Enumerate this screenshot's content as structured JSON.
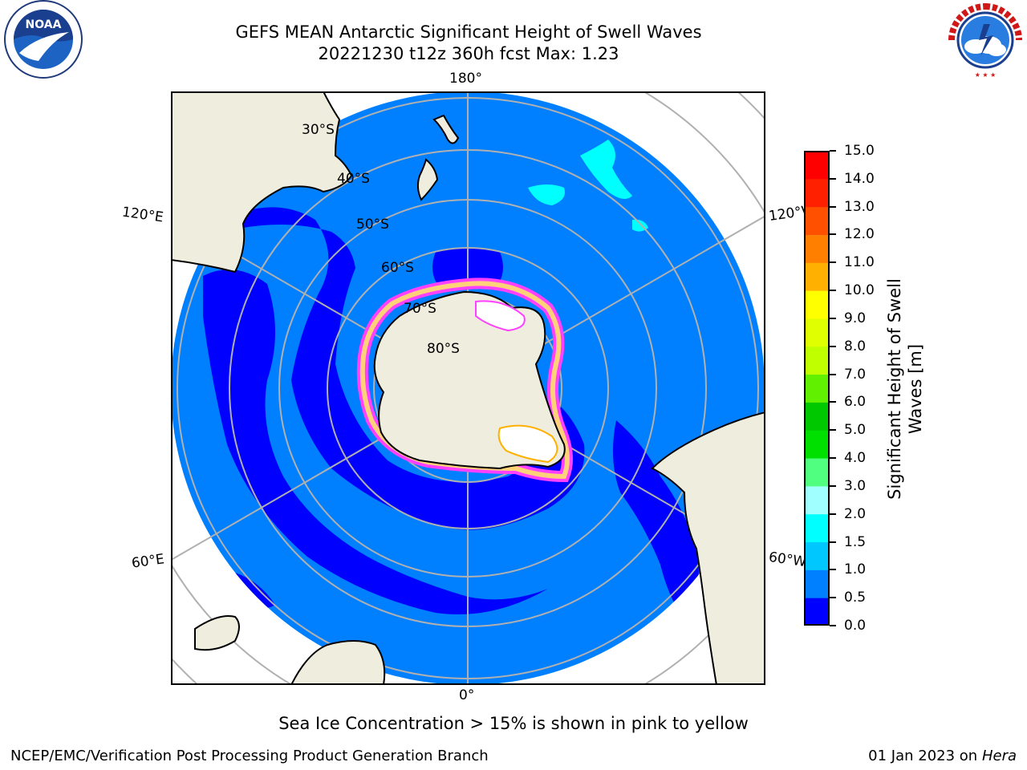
{
  "title": {
    "line1": "GEFS MEAN Antarctic Significant Height of Swell Waves",
    "line2": "20221230 t12z 360h fcst   Max: 1.23"
  },
  "map": {
    "meridian_labels": {
      "top": "180°",
      "bottom": "0°",
      "upper_left": "120°E",
      "upper_right": "120°W",
      "lower_left": "60°E",
      "lower_right": "60°W"
    },
    "latitude_labels": [
      "30°S",
      "40°S",
      "50°S",
      "60°S",
      "70°S",
      "80°S"
    ]
  },
  "colorbar": {
    "label": "Significant Height of Swell Waves [m]",
    "ticks": [
      "15.0",
      "14.0",
      "13.0",
      "12.0",
      "11.0",
      "10.0",
      "9.0",
      "8.0",
      "7.0",
      "6.0",
      "5.0",
      "4.0",
      "3.0",
      "2.0",
      "1.5",
      "1.0",
      "0.5",
      "0.0"
    ],
    "colors_bottom_to_top": [
      "#0000ff",
      "#0080ff",
      "#00c8ff",
      "#00ffff",
      "#50ffff",
      "#a0ffff",
      "#50ff80",
      "#00e000",
      "#00c800",
      "#60f000",
      "#c0ff00",
      "#e0ff00",
      "#ffff00",
      "#ffe000",
      "#ffb000",
      "#ff8000",
      "#ff5000",
      "#ff2000",
      "#ff0000"
    ]
  },
  "note": "Sea Ice Concentration > 15% is shown in pink to yellow",
  "footer": {
    "left": "NCEP/EMC/Verification Post Processing Product Generation Branch",
    "right_date": "01 Jan 2023 on",
    "right_host": "Hera"
  },
  "logos": {
    "noaa": "NOAA",
    "nws": "NATIONAL WEATHER SERVICE"
  }
}
